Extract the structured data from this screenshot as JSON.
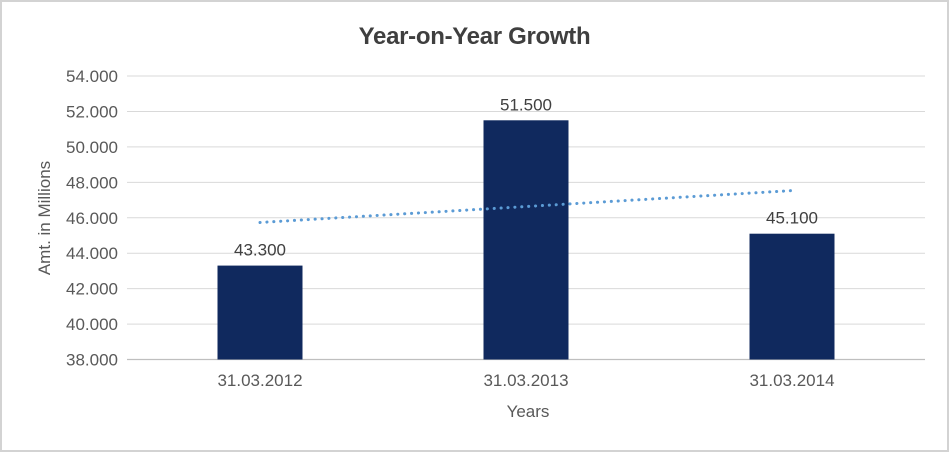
{
  "chart_data": {
    "type": "bar",
    "title": "Year-on-Year Growth",
    "xlabel": "Years",
    "ylabel": "Amt. in Millions",
    "categories": [
      "31.03.2012",
      "31.03.2013",
      "31.03.2014"
    ],
    "values": [
      43300,
      51500,
      45100
    ],
    "value_labels": [
      "43.300",
      "51.500",
      "45.100"
    ],
    "ylim": [
      38000,
      54000
    ],
    "ytick_step": 2000,
    "ytick_labels": [
      "38.000",
      "40.000",
      "42.000",
      "44.000",
      "46.000",
      "48.000",
      "50.000",
      "52.000",
      "54.000"
    ],
    "grid": true,
    "legend": "none",
    "trendline": {
      "type": "linear",
      "style": "dotted",
      "start_value": 45733,
      "end_value": 47533
    },
    "colors": {
      "bar": "#10295E",
      "trendline": "#5B9BD5",
      "gridline": "#D9D9D9",
      "axis_line": "#BFBFBF",
      "tick_text": "#595959",
      "value_label_text": "#404040",
      "title_text": "#3F3F3F",
      "border": "#D3D3D3"
    }
  }
}
